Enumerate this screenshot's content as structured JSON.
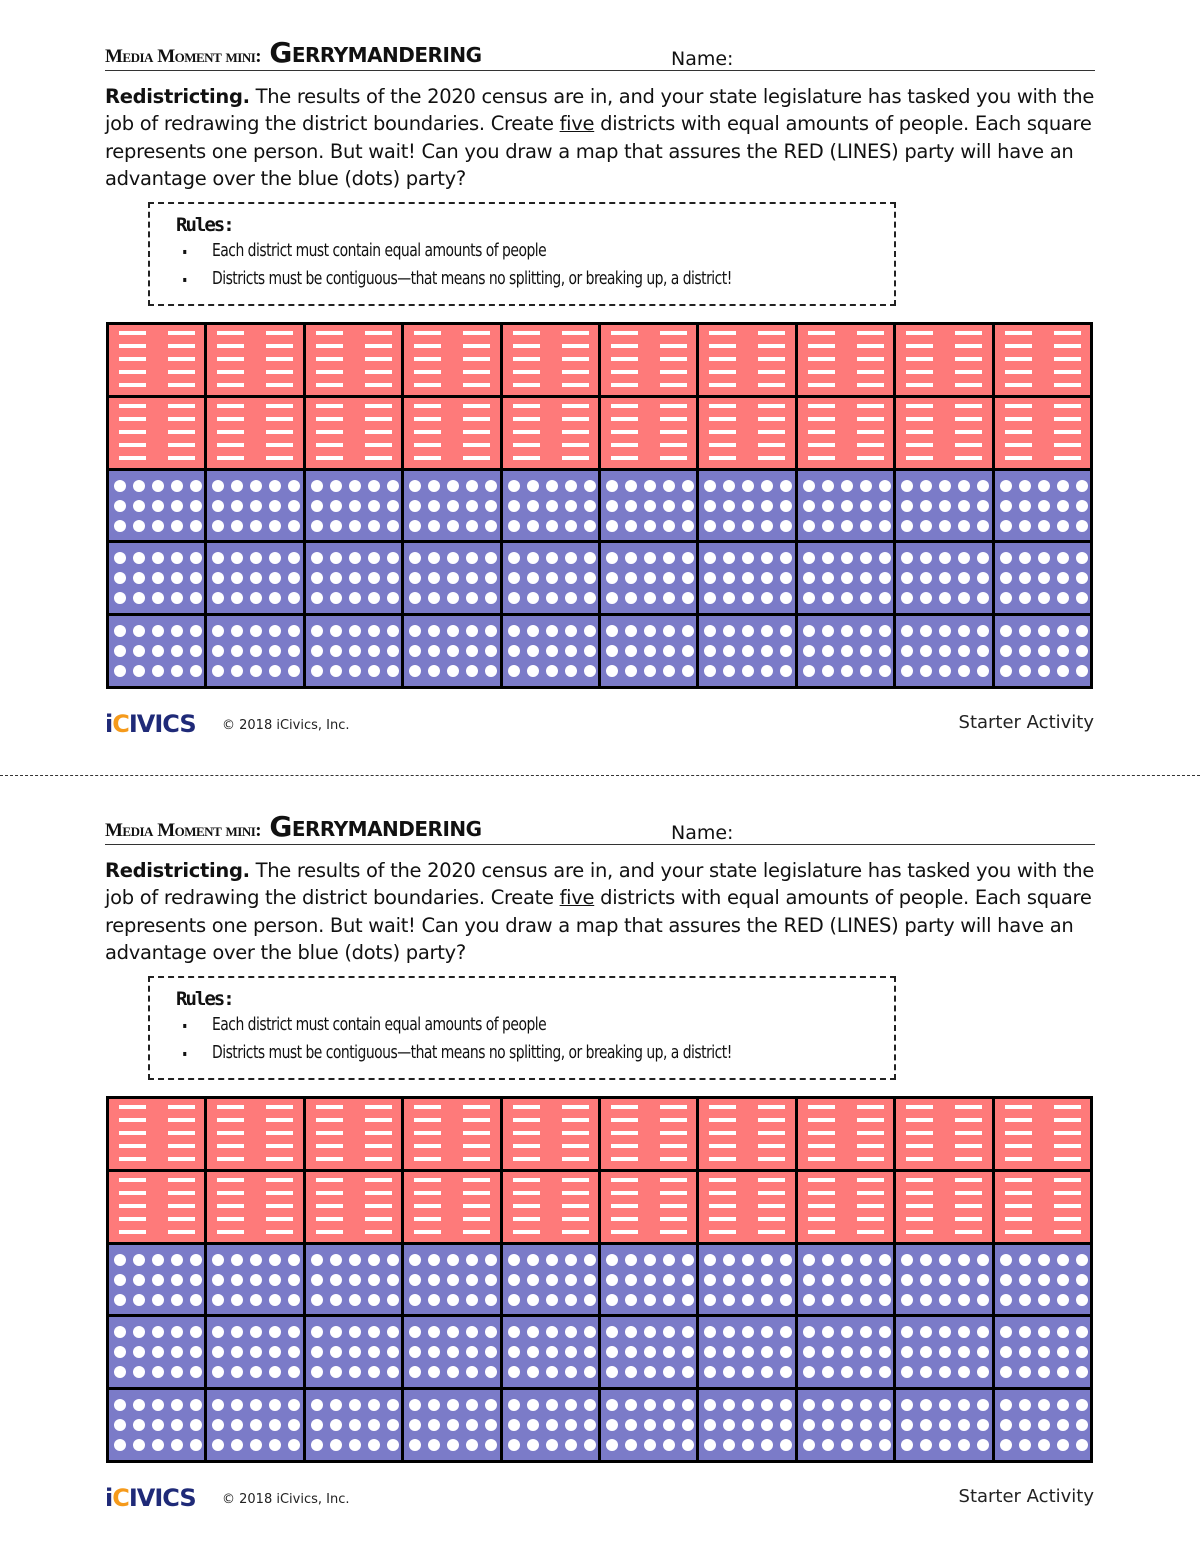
{
  "worksheets": [
    {
      "kicker": "Media Moment mini:",
      "title": "Gerrymandering",
      "name_label": "Name:",
      "intro": {
        "lead": "Redistricting.",
        "text_before": " The results of the 2020 census are in, and your state legislature has tasked you with the job of redrawing the district boundaries. Create ",
        "underlined": "five",
        "text_after": " districts with equal amounts of people. Each square represents one person. But wait! Can you draw  a map that assures the RED (LINES) party will have an advantage over  the blue (dots) party?"
      },
      "rules": {
        "heading": "Rules:",
        "items": [
          "Each district must contain equal amounts of people",
          "Districts must be contiguous—that means no splitting, or breaking up, a district!"
        ]
      },
      "footer": {
        "logo": "iCivics",
        "copyright": "© 2018 iCivics, Inc.",
        "activity": "Starter Activity"
      }
    },
    {
      "kicker": "Media Moment mini:",
      "title": "Gerrymandering",
      "name_label": "Name:",
      "intro": {
        "lead": "Redistricting.",
        "text_before": " The results of the 2020 census are in, and your state legislature has tasked you with the job of redrawing the district boundaries. Create ",
        "underlined": "five",
        "text_after": " districts with equal amounts of people. Each square represents one person. But wait! Can you draw  a map that assures the RED (LINES) party will have an advantage over  the blue (dots) party?"
      },
      "rules": {
        "heading": "Rules:",
        "items": [
          "Each district must contain equal amounts of people",
          "Districts must be contiguous—that means no splitting, or breaking up, a district!"
        ]
      },
      "footer": {
        "logo": "iCivics",
        "copyright": "© 2018 iCivics, Inc.",
        "activity": "Starter Activity"
      }
    }
  ],
  "map": {
    "columns": 10,
    "rows": [
      "red",
      "red",
      "blue",
      "blue",
      "blue"
    ],
    "party_colors": {
      "red": "#fe7a7a",
      "blue": "#7b7bc8"
    },
    "party_patterns": {
      "red": "lines",
      "blue": "dots"
    }
  }
}
